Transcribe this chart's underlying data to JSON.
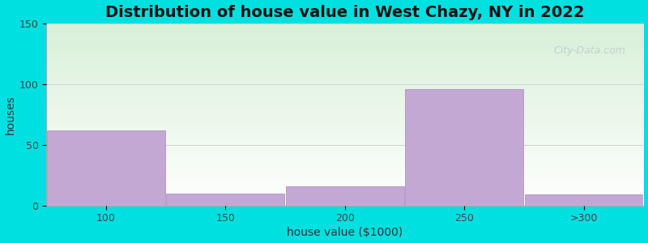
{
  "title": "Distribution of house value in West Chazy, NY in 2022",
  "categories": [
    "100",
    "150",
    "200",
    "250",
    ">300"
  ],
  "values": [
    62,
    10,
    16,
    96,
    9
  ],
  "bar_color": "#c4a8d4",
  "bar_edgecolor": "#a888b8",
  "xlabel": "house value ($1000)",
  "ylabel": "houses",
  "ylim": [
    0,
    150
  ],
  "yticks": [
    0,
    50,
    100,
    150
  ],
  "background_outer": "#00e0e0",
  "background_top": "#d8f0d8",
  "background_bottom": "#ffffff",
  "title_fontsize": 14,
  "label_fontsize": 10,
  "tick_fontsize": 9,
  "watermark": "City-Data.com",
  "bar_edges": [
    75,
    125,
    175,
    225,
    275,
    325
  ],
  "tick_positions": [
    100,
    150,
    200,
    250,
    300
  ]
}
